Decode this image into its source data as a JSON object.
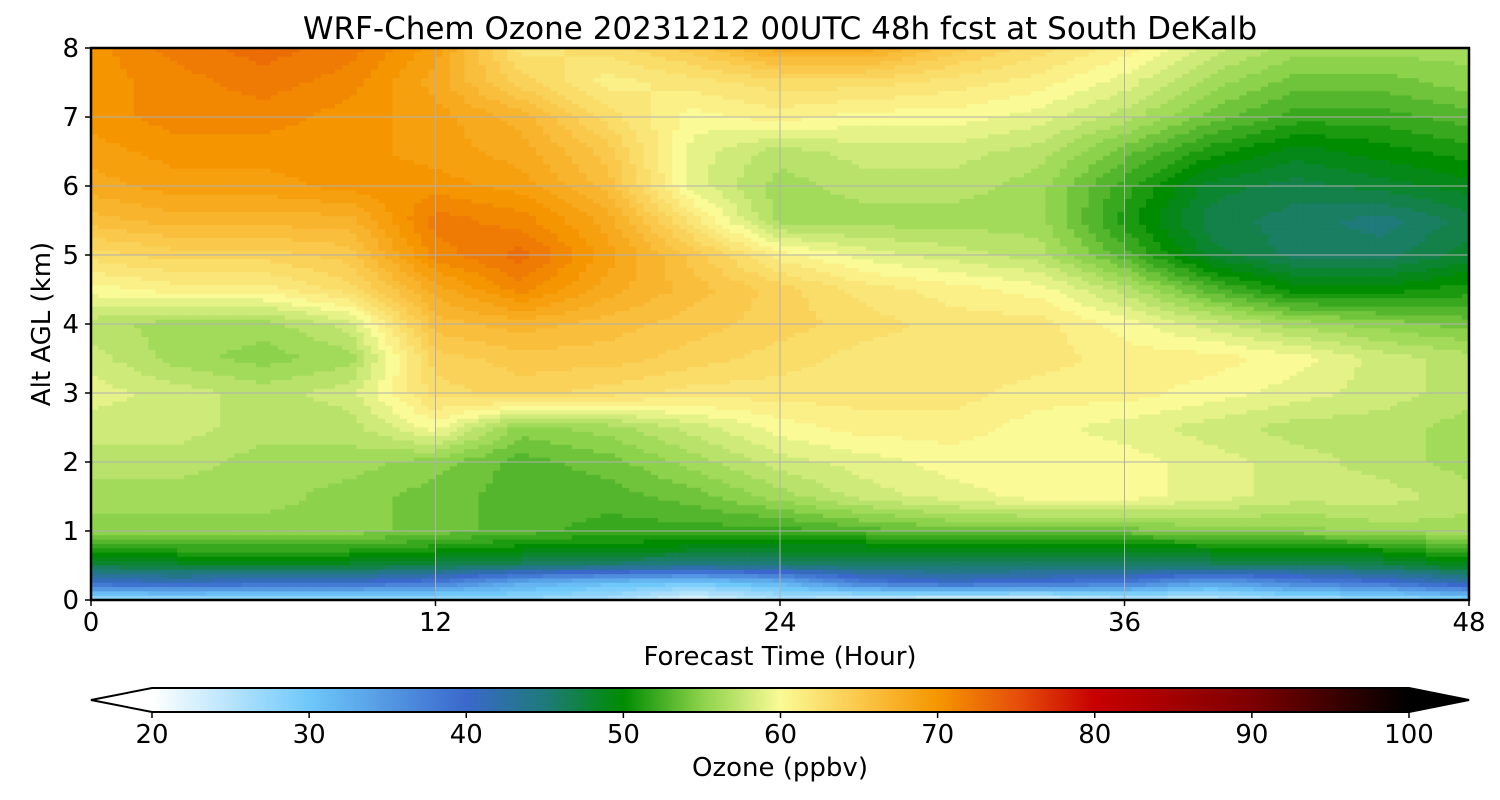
{
  "chart_data": {
    "type": "heatmap",
    "title": "WRF-Chem Ozone  20231212 00UTC 48h fcst at South DeKalb",
    "xlabel": "Forecast Time (Hour)",
    "ylabel": "Alt AGL (km)",
    "xlim": [
      0,
      48
    ],
    "ylim": [
      0,
      8
    ],
    "x_ticks": [
      "0",
      "12",
      "24",
      "36",
      "48"
    ],
    "y_ticks": [
      "0",
      "1",
      "2",
      "3",
      "4",
      "5",
      "6",
      "7",
      "8"
    ],
    "grid": true,
    "colorbar": {
      "label": "Ozone  (ppbv)",
      "min": 20,
      "max": 100,
      "ticks": [
        "20",
        "30",
        "40",
        "50",
        "60",
        "70",
        "80",
        "90",
        "100"
      ],
      "extend": "both",
      "stops": [
        {
          "v": 20,
          "c": "#ffffff"
        },
        {
          "v": 30,
          "c": "#6ec8fa"
        },
        {
          "v": 40,
          "c": "#3a68cc"
        },
        {
          "v": 45,
          "c": "#1f7a7a"
        },
        {
          "v": 50,
          "c": "#008c00"
        },
        {
          "v": 55,
          "c": "#8cd24b"
        },
        {
          "v": 60,
          "c": "#fafa96"
        },
        {
          "v": 65,
          "c": "#fac84b"
        },
        {
          "v": 70,
          "c": "#f59600"
        },
        {
          "v": 75,
          "c": "#e6500a"
        },
        {
          "v": 80,
          "c": "#c80000"
        },
        {
          "v": 90,
          "c": "#7d0000"
        },
        {
          "v": 100,
          "c": "#000000"
        }
      ]
    },
    "x": [
      0,
      3,
      6,
      9,
      12,
      15,
      18,
      21,
      24,
      27,
      30,
      33,
      36,
      39,
      42,
      45,
      48
    ],
    "y": [
      0,
      0.25,
      0.5,
      0.75,
      1,
      1.5,
      2,
      2.5,
      3,
      3.5,
      4,
      4.5,
      5,
      5.5,
      6,
      6.5,
      7,
      7.5,
      8
    ],
    "z": [
      [
        26,
        26,
        26,
        26,
        26,
        27,
        26,
        22,
        25,
        23,
        22,
        22,
        24,
        24,
        26,
        26,
        28
      ],
      [
        40,
        41,
        40,
        40,
        38,
        33,
        31,
        30,
        32,
        38,
        40,
        39,
        38,
        34,
        37,
        39,
        42
      ],
      [
        47,
        48,
        48,
        48,
        47,
        46,
        45,
        44,
        45,
        46,
        46,
        46,
        46,
        46,
        46,
        47,
        49
      ],
      [
        52,
        52,
        52,
        52,
        51,
        50,
        50,
        49,
        49,
        49,
        49,
        49,
        49,
        50,
        50,
        51,
        53
      ],
      [
        55,
        55,
        55,
        55,
        54,
        53,
        52,
        52,
        52,
        53,
        54,
        54,
        54,
        55,
        55,
        56,
        56
      ],
      [
        56,
        56,
        56,
        55,
        54,
        53,
        53,
        54,
        56,
        58,
        59,
        60,
        60,
        59,
        58,
        58,
        57
      ],
      [
        57,
        57,
        56,
        56,
        55,
        53,
        54,
        56,
        58,
        59,
        60,
        60,
        60,
        59,
        58,
        57,
        56
      ],
      [
        58,
        58,
        57,
        57,
        60,
        55,
        56,
        58,
        60,
        61,
        61,
        60,
        59,
        58,
        57,
        57,
        56
      ],
      [
        59,
        58,
        57,
        58,
        63,
        64,
        63,
        62,
        62,
        62,
        62,
        61,
        61,
        60,
        59,
        58,
        57
      ],
      [
        58,
        56,
        55,
        56,
        64,
        65,
        65,
        64,
        63,
        62,
        62,
        62,
        61,
        61,
        60,
        58,
        57
      ],
      [
        57,
        56,
        56,
        58,
        66,
        67,
        66,
        65,
        64,
        63,
        62,
        62,
        60,
        58,
        56,
        55,
        54
      ],
      [
        60,
        61,
        61,
        63,
        68,
        71,
        68,
        66,
        64,
        62,
        61,
        60,
        57,
        53,
        50,
        50,
        51
      ],
      [
        63,
        64,
        64,
        65,
        71,
        73,
        69,
        65,
        61,
        59,
        58,
        57,
        53,
        48,
        46,
        46,
        48
      ],
      [
        66,
        67,
        67,
        67,
        72,
        71,
        68,
        62,
        56,
        56,
        56,
        56,
        51,
        47,
        46,
        45,
        47
      ],
      [
        68,
        69,
        69,
        70,
        70,
        69,
        66,
        59,
        56,
        57,
        57,
        56,
        52,
        48,
        47,
        48,
        49
      ],
      [
        69,
        70,
        70,
        70,
        69,
        68,
        65,
        59,
        57,
        58,
        58,
        57,
        54,
        51,
        49,
        50,
        51
      ],
      [
        70,
        71,
        71,
        70,
        69,
        67,
        63,
        60,
        61,
        60,
        60,
        59,
        57,
        54,
        52,
        52,
        53
      ],
      [
        70,
        71,
        72,
        71,
        68,
        64,
        61,
        62,
        63,
        63,
        62,
        61,
        59,
        56,
        54,
        54,
        55
      ],
      [
        70,
        72,
        73,
        72,
        69,
        62,
        63,
        65,
        68,
        68,
        65,
        63,
        61,
        58,
        56,
        56,
        56
      ]
    ]
  }
}
